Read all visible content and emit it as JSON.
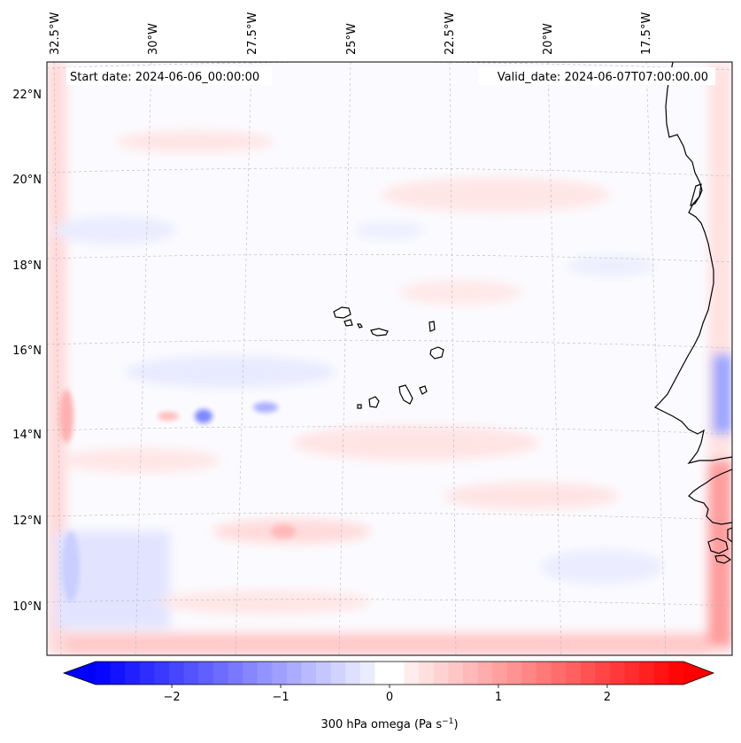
{
  "map": {
    "start_date": "Start date: 2024-06-06_00:00:00",
    "valid_date": "Valid_date: 2024-06-07T07:00:00.00",
    "lon_labels": [
      "32.5°W",
      "30°W",
      "27.5°W",
      "25°W",
      "22.5°W",
      "20°W",
      "17.5°W"
    ],
    "lat_labels": [
      "22°N",
      "20°N",
      "18°N",
      "16°N",
      "14°N",
      "12°N",
      "10°N"
    ],
    "field_colors": {
      "negative": "#0000ff",
      "zero": "#ffffff",
      "positive": "#ff0000"
    }
  },
  "colorbar": {
    "label": "300 hPa omega (Pa s",
    "label_exp": "−1",
    "label_close": ")",
    "range": [
      -2.7,
      2.7
    ],
    "ticks": [
      {
        "value": -2,
        "label": "−2"
      },
      {
        "value": -1,
        "label": "−1"
      },
      {
        "value": 0,
        "label": "0"
      },
      {
        "value": 1,
        "label": "1"
      },
      {
        "value": 2,
        "label": "2"
      }
    ],
    "levels": 40
  }
}
